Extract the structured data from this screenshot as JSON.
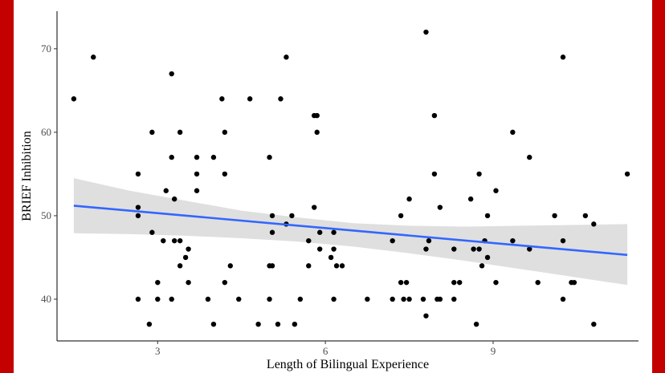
{
  "chart_data": {
    "type": "scatter",
    "xlabel": "Length of Bilingual Experience",
    "ylabel": "BRIEF Inhibition",
    "xlim": [
      1.2,
      11.6
    ],
    "ylim": [
      35,
      74.5
    ],
    "x_ticks": [
      3,
      6,
      9
    ],
    "y_ticks": [
      40,
      50,
      60,
      70
    ],
    "grid": false,
    "points": [
      [
        1.5,
        64
      ],
      [
        1.85,
        69
      ],
      [
        2.65,
        55
      ],
      [
        2.65,
        51
      ],
      [
        2.65,
        50
      ],
      [
        2.65,
        40
      ],
      [
        2.85,
        37
      ],
      [
        2.9,
        60
      ],
      [
        2.9,
        48
      ],
      [
        3.0,
        42
      ],
      [
        3.0,
        40
      ],
      [
        3.1,
        47
      ],
      [
        3.15,
        53
      ],
      [
        3.25,
        67
      ],
      [
        3.25,
        57
      ],
      [
        3.25,
        40
      ],
      [
        3.3,
        52
      ],
      [
        3.3,
        47
      ],
      [
        3.4,
        60
      ],
      [
        3.4,
        47
      ],
      [
        3.4,
        44
      ],
      [
        3.5,
        45
      ],
      [
        3.55,
        46
      ],
      [
        3.55,
        42
      ],
      [
        3.7,
        57
      ],
      [
        3.7,
        55
      ],
      [
        3.7,
        53
      ],
      [
        3.9,
        40
      ],
      [
        4.0,
        57
      ],
      [
        4.0,
        37
      ],
      [
        4.15,
        64
      ],
      [
        4.2,
        60
      ],
      [
        4.2,
        55
      ],
      [
        4.2,
        42
      ],
      [
        4.3,
        44
      ],
      [
        4.45,
        40
      ],
      [
        4.65,
        64
      ],
      [
        4.8,
        37
      ],
      [
        5.0,
        57
      ],
      [
        5.0,
        44
      ],
      [
        5.0,
        40
      ],
      [
        5.05,
        50
      ],
      [
        5.05,
        48
      ],
      [
        5.05,
        44
      ],
      [
        5.15,
        37
      ],
      [
        5.2,
        64
      ],
      [
        5.3,
        69
      ],
      [
        5.3,
        49
      ],
      [
        5.4,
        50
      ],
      [
        5.45,
        37
      ],
      [
        5.55,
        40
      ],
      [
        5.7,
        47
      ],
      [
        5.7,
        44
      ],
      [
        5.8,
        62
      ],
      [
        5.8,
        51
      ],
      [
        5.85,
        62
      ],
      [
        5.85,
        60
      ],
      [
        5.9,
        48
      ],
      [
        5.9,
        46
      ],
      [
        6.1,
        45
      ],
      [
        6.15,
        48
      ],
      [
        6.15,
        46
      ],
      [
        6.2,
        44
      ],
      [
        6.15,
        40
      ],
      [
        6.3,
        44
      ],
      [
        6.75,
        40
      ],
      [
        7.2,
        47
      ],
      [
        7.2,
        40
      ],
      [
        7.35,
        50
      ],
      [
        7.35,
        42
      ],
      [
        7.4,
        40
      ],
      [
        7.45,
        42
      ],
      [
        7.5,
        52
      ],
      [
        7.5,
        40
      ],
      [
        7.75,
        40
      ],
      [
        7.8,
        72
      ],
      [
        7.8,
        46
      ],
      [
        7.8,
        38
      ],
      [
        7.85,
        47
      ],
      [
        7.95,
        62
      ],
      [
        7.95,
        55
      ],
      [
        8.0,
        40
      ],
      [
        8.05,
        51
      ],
      [
        8.05,
        40
      ],
      [
        8.3,
        46
      ],
      [
        8.3,
        42
      ],
      [
        8.3,
        40
      ],
      [
        8.4,
        42
      ],
      [
        8.6,
        52
      ],
      [
        8.65,
        46
      ],
      [
        8.7,
        37
      ],
      [
        8.75,
        55
      ],
      [
        8.75,
        46
      ],
      [
        8.8,
        44
      ],
      [
        8.85,
        47
      ],
      [
        8.9,
        50
      ],
      [
        8.9,
        45
      ],
      [
        9.05,
        53
      ],
      [
        9.05,
        42
      ],
      [
        9.35,
        60
      ],
      [
        9.35,
        47
      ],
      [
        9.65,
        57
      ],
      [
        9.65,
        46
      ],
      [
        9.8,
        42
      ],
      [
        10.1,
        50
      ],
      [
        10.25,
        69
      ],
      [
        10.25,
        47
      ],
      [
        10.25,
        40
      ],
      [
        10.4,
        42
      ],
      [
        10.45,
        42
      ],
      [
        10.65,
        50
      ],
      [
        10.8,
        49
      ],
      [
        10.8,
        37
      ],
      [
        11.4,
        55
      ]
    ],
    "trend": {
      "x": [
        1.5,
        11.4
      ],
      "y": [
        51.2,
        45.3
      ]
    },
    "confidence_band": {
      "x": [
        1.5,
        2.5,
        3.5,
        4.5,
        5.5,
        6.5,
        7.5,
        8.5,
        9.5,
        10.5,
        11.4
      ],
      "upper": [
        54.5,
        53.0,
        51.8,
        50.6,
        49.8,
        49.1,
        48.8,
        48.7,
        48.8,
        48.9,
        49.0
      ],
      "lower": [
        47.9,
        47.8,
        47.6,
        47.3,
        46.9,
        46.3,
        45.5,
        44.6,
        43.6,
        42.6,
        41.7
      ]
    },
    "colors": {
      "points": "#000000",
      "trend": "#3366ff",
      "band": "#d9d9d9",
      "frame": "#c40000"
    }
  }
}
